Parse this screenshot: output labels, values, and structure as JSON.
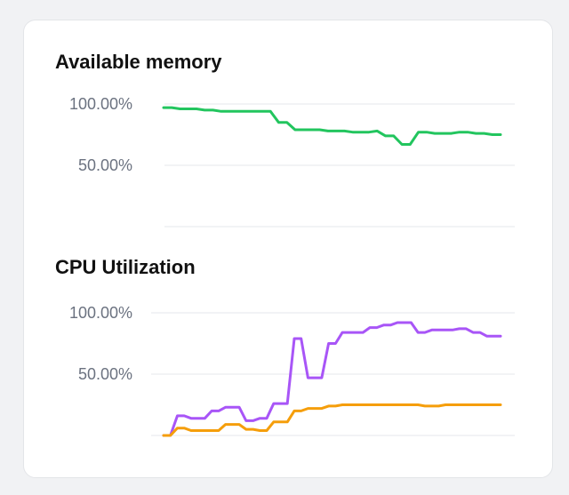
{
  "charts": [
    {
      "title": "Available memory",
      "y_ticks": [
        "100.00%",
        "50.00%"
      ]
    },
    {
      "title": "CPU Utilization",
      "y_ticks": [
        "100.00%",
        "50.00%"
      ]
    }
  ],
  "chart_data": [
    {
      "type": "line",
      "title": "Available memory",
      "xlabel": "",
      "ylabel": "",
      "ylim": [
        0,
        100
      ],
      "y_ticks": [
        100,
        50
      ],
      "grid": true,
      "series": [
        {
          "color": "#22c55e",
          "values": [
            97,
            97,
            96,
            96,
            96,
            95,
            95,
            94,
            94,
            94,
            94,
            94,
            94,
            94,
            85,
            85,
            79,
            79,
            79,
            79,
            78,
            78,
            78,
            77,
            77,
            77,
            78,
            74,
            74,
            67,
            67,
            77,
            77,
            76,
            76,
            76,
            77,
            77,
            76,
            76,
            75,
            75
          ]
        }
      ]
    },
    {
      "type": "line",
      "title": "CPU Utilization",
      "xlabel": "",
      "ylabel": "",
      "ylim": [
        0,
        100
      ],
      "y_ticks": [
        100,
        50
      ],
      "grid": true,
      "series": [
        {
          "color": "#a855f7",
          "values": [
            0,
            0,
            16,
            16,
            14,
            14,
            14,
            20,
            20,
            23,
            23,
            23,
            12,
            12,
            14,
            14,
            26,
            26,
            26,
            79,
            79,
            47,
            47,
            47,
            75,
            75,
            84,
            84,
            84,
            84,
            88,
            88,
            90,
            90,
            92,
            92,
            92,
            84,
            84,
            86,
            86,
            86,
            86,
            87,
            87,
            84,
            84,
            81,
            81,
            81
          ]
        },
        {
          "color": "#f59e0b",
          "values": [
            0,
            0,
            6,
            6,
            4,
            4,
            4,
            4,
            4,
            9,
            9,
            9,
            5,
            5,
            4,
            4,
            11,
            11,
            11,
            20,
            20,
            22,
            22,
            22,
            24,
            24,
            25,
            25,
            25,
            25,
            25,
            25,
            25,
            25,
            25,
            25,
            25,
            25,
            24,
            24,
            24,
            25,
            25,
            25,
            25,
            25,
            25,
            25,
            25,
            25
          ]
        }
      ]
    }
  ]
}
